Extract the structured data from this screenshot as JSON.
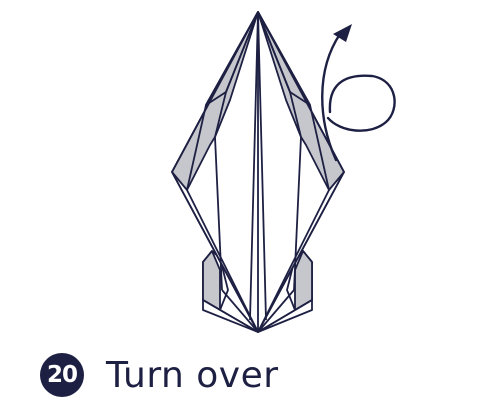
{
  "step": {
    "number": "20",
    "instruction": "Turn over"
  },
  "colors": {
    "line": "#1e2043",
    "shade": "#c6c7cc",
    "paper": "#ffffff"
  },
  "icons": {
    "turn_over_arrow": "turn-over-arrow-icon"
  }
}
